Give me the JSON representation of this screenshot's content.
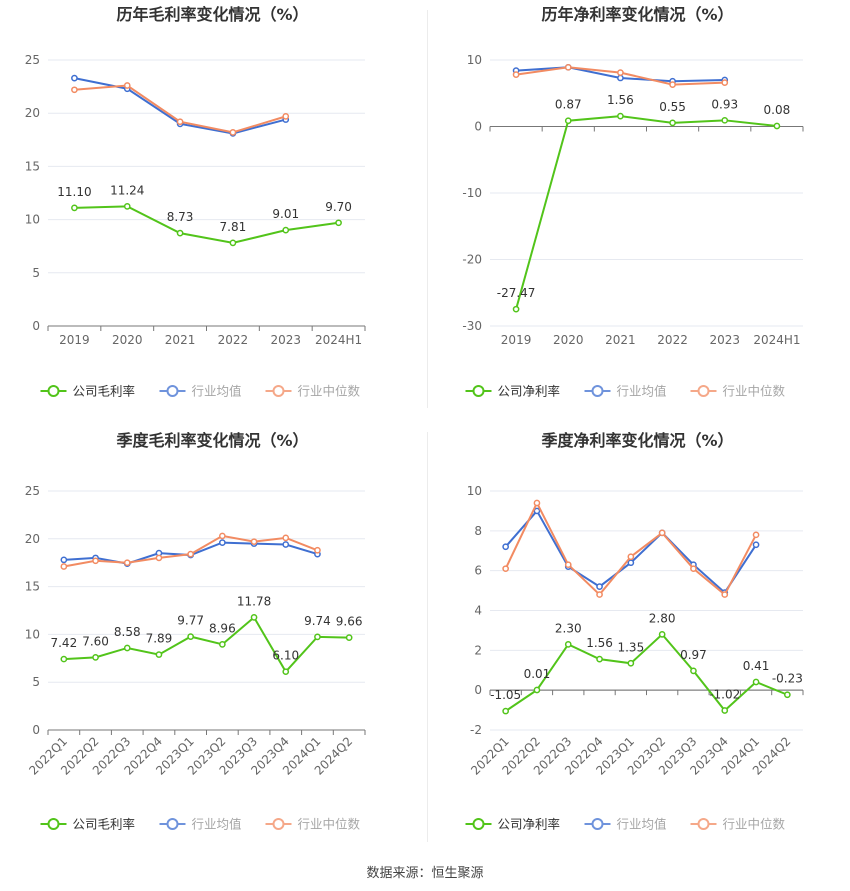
{
  "colors": {
    "company": "#52c41a",
    "industry_avg": "#3f6fd1",
    "industry_median": "#f28b62",
    "grid": "#e6e9f0",
    "axis_text": "#666666",
    "title": "#333333"
  },
  "source_note": "数据来源：恒生聚源",
  "chart_data": [
    {
      "id": "annual-gross",
      "type": "line",
      "title": "历年毛利率变化情况（%）",
      "categories": [
        "2019",
        "2020",
        "2021",
        "2022",
        "2023",
        "2024H1"
      ],
      "ylim": [
        0,
        25
      ],
      "yticks": [
        0,
        5,
        10,
        15,
        20,
        25
      ],
      "grid": true,
      "legend_position": "bottom",
      "series": [
        {
          "name": "公司毛利率",
          "key": "company",
          "values": [
            11.1,
            11.24,
            8.73,
            7.81,
            9.01,
            9.7
          ],
          "labels": [
            "11.10",
            "11.24",
            "8.73",
            "7.81",
            "9.01",
            "9.70"
          ]
        },
        {
          "name": "行业均值",
          "key": "industry_avg",
          "values": [
            23.3,
            22.3,
            19.0,
            18.1,
            19.4,
            null
          ]
        },
        {
          "name": "行业中位数",
          "key": "industry_median",
          "values": [
            22.2,
            22.6,
            19.2,
            18.2,
            19.7,
            null
          ]
        }
      ]
    },
    {
      "id": "annual-net",
      "type": "line",
      "title": "历年净利率变化情况（%）",
      "categories": [
        "2019",
        "2020",
        "2021",
        "2022",
        "2023",
        "2024H1"
      ],
      "ylim": [
        -30,
        10
      ],
      "yticks": [
        -30,
        -20,
        -10,
        0,
        10
      ],
      "grid": true,
      "legend_position": "bottom",
      "series": [
        {
          "name": "公司净利率",
          "key": "company",
          "values": [
            -27.47,
            0.87,
            1.56,
            0.55,
            0.93,
            0.08
          ],
          "labels": [
            "-27.47",
            "0.87",
            "1.56",
            "0.55",
            "0.93",
            "0.08"
          ]
        },
        {
          "name": "行业均值",
          "key": "industry_avg",
          "values": [
            8.4,
            8.9,
            7.3,
            6.8,
            7.0,
            null
          ]
        },
        {
          "name": "行业中位数",
          "key": "industry_median",
          "values": [
            7.8,
            8.9,
            8.1,
            6.3,
            6.6,
            null
          ]
        }
      ]
    },
    {
      "id": "quarter-gross",
      "type": "line",
      "title": "季度毛利率变化情况（%）",
      "categories": [
        "2022Q1",
        "2022Q2",
        "2022Q3",
        "2022Q4",
        "2023Q1",
        "2023Q2",
        "2023Q3",
        "2023Q4",
        "2024Q1",
        "2024Q2"
      ],
      "ylim": [
        0,
        25
      ],
      "yticks": [
        0,
        5,
        10,
        15,
        20,
        25
      ],
      "grid": true,
      "legend_position": "bottom",
      "series": [
        {
          "name": "公司毛利率",
          "key": "company",
          "values": [
            7.42,
            7.6,
            8.58,
            7.89,
            9.77,
            8.96,
            11.78,
            6.1,
            9.74,
            9.66
          ],
          "labels": [
            "7.42",
            "7.60",
            "8.58",
            "7.89",
            "9.77",
            "8.96",
            "11.78",
            "6.10",
            "9.74",
            "9.66"
          ]
        },
        {
          "name": "行业均值",
          "key": "industry_avg",
          "values": [
            17.8,
            18.0,
            17.4,
            18.5,
            18.3,
            19.6,
            19.5,
            19.4,
            18.4,
            null
          ]
        },
        {
          "name": "行业中位数",
          "key": "industry_median",
          "values": [
            17.1,
            17.7,
            17.5,
            18.0,
            18.4,
            20.3,
            19.7,
            20.1,
            18.8,
            null
          ]
        }
      ]
    },
    {
      "id": "quarter-net",
      "type": "line",
      "title": "季度净利率变化情况（%）",
      "categories": [
        "2022Q1",
        "2022Q2",
        "2022Q3",
        "2022Q4",
        "2023Q1",
        "2023Q2",
        "2023Q3",
        "2023Q4",
        "2024Q1",
        "2024Q2"
      ],
      "ylim": [
        -2,
        10
      ],
      "yticks": [
        -2,
        0,
        2,
        4,
        6,
        8,
        10
      ],
      "grid": true,
      "legend_position": "bottom",
      "series": [
        {
          "name": "公司净利率",
          "key": "company",
          "values": [
            -1.05,
            0.01,
            2.3,
            1.56,
            1.35,
            2.8,
            0.97,
            -1.02,
            0.41,
            -0.23
          ],
          "labels": [
            "-1.05",
            "0.01",
            "2.30",
            "1.56",
            "1.35",
            "2.80",
            "0.97",
            "-1.02",
            "0.41",
            "-0.23"
          ]
        },
        {
          "name": "行业均值",
          "key": "industry_avg",
          "values": [
            7.2,
            9.0,
            6.2,
            5.2,
            6.4,
            7.9,
            6.3,
            4.9,
            7.3,
            null
          ]
        },
        {
          "name": "行业中位数",
          "key": "industry_median",
          "values": [
            6.1,
            9.4,
            6.3,
            4.8,
            6.7,
            7.9,
            6.1,
            4.8,
            7.8,
            null
          ]
        }
      ]
    }
  ]
}
